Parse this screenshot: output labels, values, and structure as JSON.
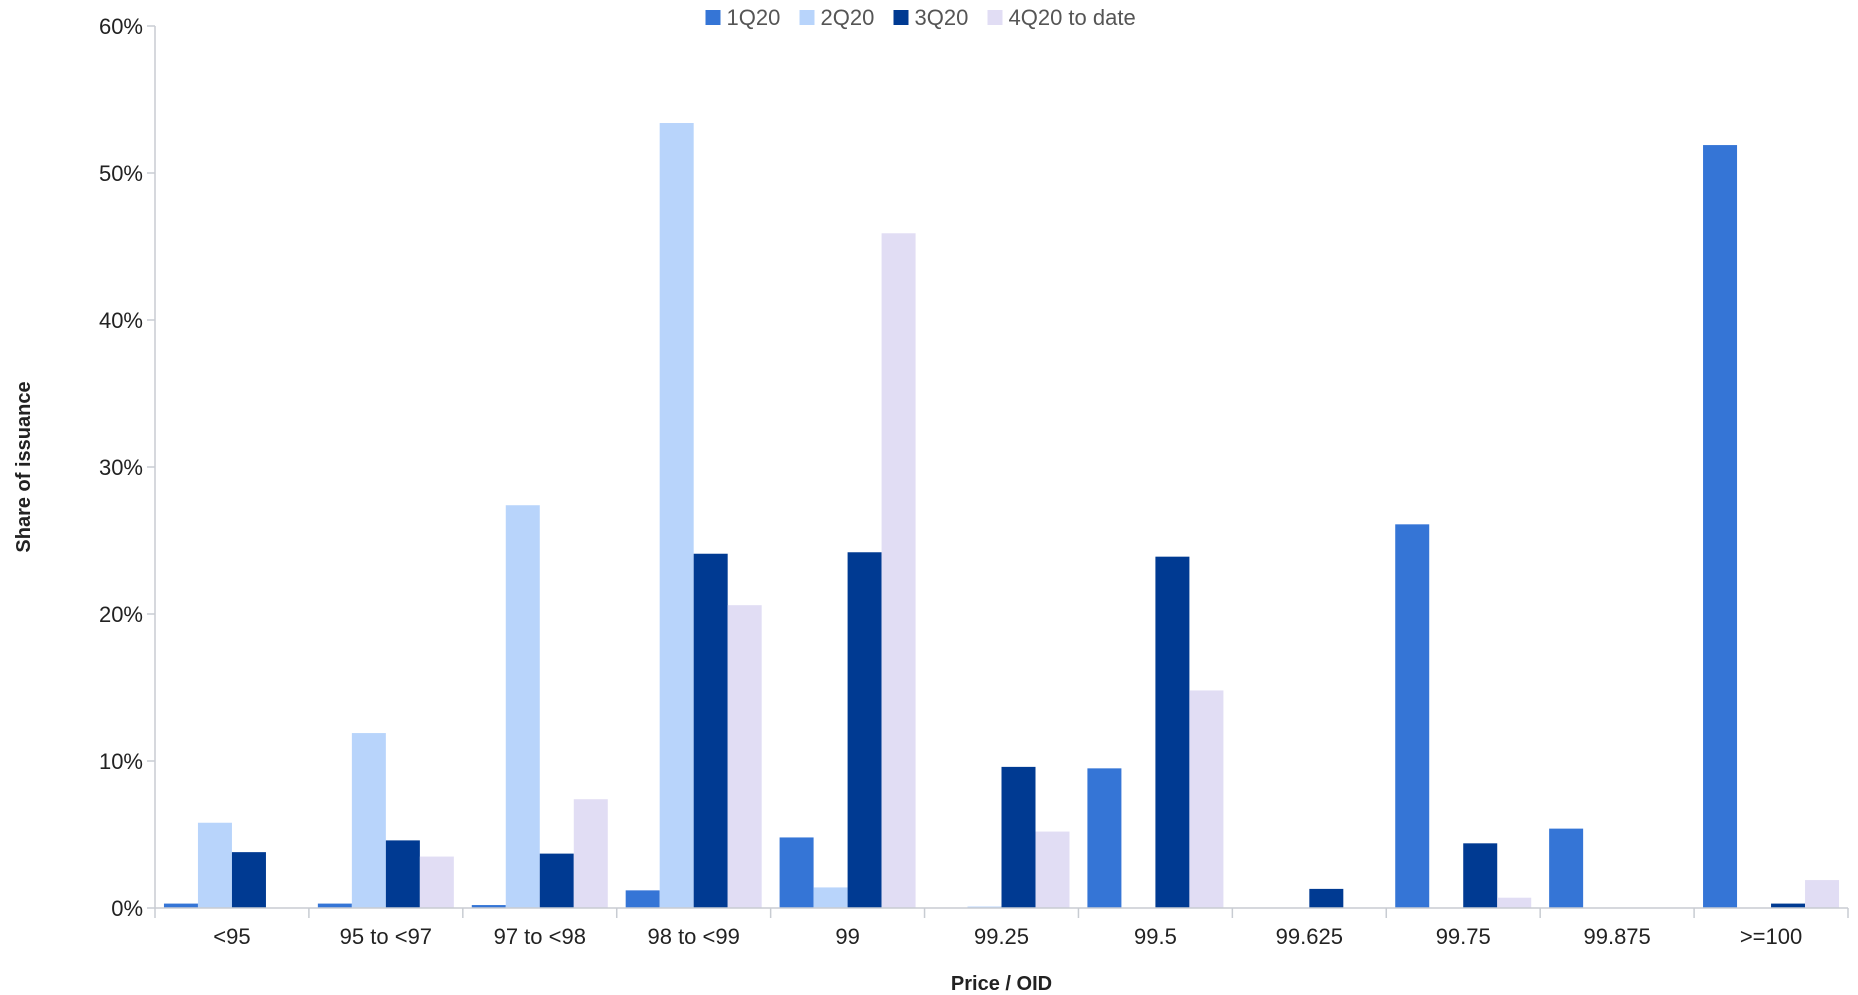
{
  "chart_data": {
    "type": "bar",
    "title": "",
    "xlabel": "Price / OID",
    "ylabel": "Share of issuance",
    "ylim": [
      0,
      60
    ],
    "yticks": [
      "0%",
      "10%",
      "20%",
      "30%",
      "40%",
      "50%",
      "60%"
    ],
    "categories": [
      "<95",
      "95 to <97",
      "97 to <98",
      "98 to <99",
      "99",
      "99.25",
      "99.5",
      "99.625",
      "99.75",
      "99.875",
      ">=100"
    ],
    "series": [
      {
        "name": "1Q20",
        "color": "#3575d6",
        "values": [
          0.3,
          0.3,
          0.2,
          1.2,
          4.8,
          0,
          9.5,
          0,
          26.1,
          5.4,
          51.9
        ]
      },
      {
        "name": "2Q20",
        "color": "#b8d4fb",
        "values": [
          5.8,
          11.9,
          27.4,
          53.4,
          1.4,
          0.1,
          0,
          0,
          0,
          0,
          0
        ]
      },
      {
        "name": "3Q20",
        "color": "#003a92",
        "values": [
          3.8,
          4.6,
          3.7,
          24.1,
          24.2,
          9.6,
          23.9,
          1.3,
          4.4,
          0,
          0.3
        ]
      },
      {
        "name": "4Q20 to date",
        "color": "#e1ddf4",
        "values": [
          0,
          3.5,
          7.4,
          20.6,
          45.9,
          5.2,
          14.8,
          0,
          0.7,
          0,
          1.9
        ]
      }
    ],
    "grid": false,
    "legend_position": "top-center"
  }
}
